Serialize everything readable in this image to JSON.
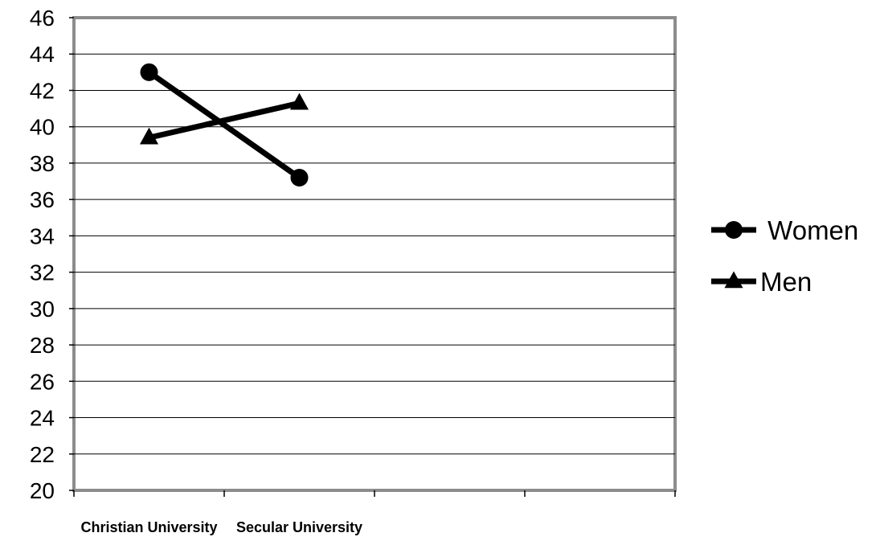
{
  "chart_data": {
    "type": "line",
    "title": "",
    "xlabel": "",
    "ylabel": "",
    "categories": [
      "Christian University",
      "Secular University"
    ],
    "yticks": [
      "20",
      "22",
      "24",
      "26",
      "28",
      "30",
      "32",
      "34",
      "36",
      "38",
      "40",
      "42",
      "44",
      "46"
    ],
    "ylim": [
      20,
      46
    ],
    "grid": true,
    "legend_position": "right",
    "series": [
      {
        "name": "Women",
        "label": " Women",
        "marker": "circle",
        "color": "#000000",
        "values": [
          43.0,
          37.2
        ]
      },
      {
        "name": "Men",
        "label": "Men",
        "marker": "triangle",
        "color": "#000000",
        "values": [
          39.4,
          41.3
        ]
      }
    ]
  }
}
